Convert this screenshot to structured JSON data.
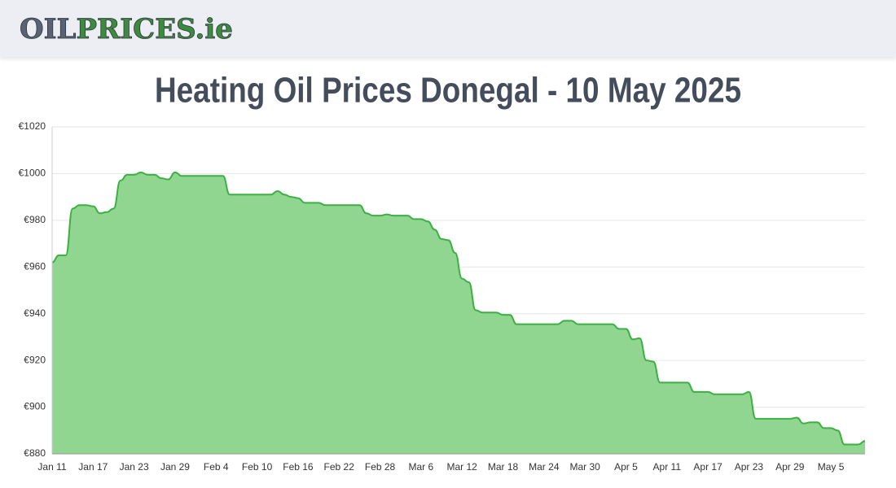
{
  "header": {
    "logo": {
      "left": "OIL",
      "right": "PRICES.ie"
    }
  },
  "chart_data": {
    "type": "area",
    "title": "Heating Oil Prices Donegal - 10 May 2025",
    "color": "#3cb043",
    "fill": "#90d590",
    "grid": true,
    "ylim": [
      880,
      1020
    ],
    "yticks": [
      {
        "value": 880,
        "label": "€880"
      },
      {
        "value": 900,
        "label": "€900"
      },
      {
        "value": 920,
        "label": "€920"
      },
      {
        "value": 940,
        "label": "€940"
      },
      {
        "value": 960,
        "label": "€960"
      },
      {
        "value": 980,
        "label": "€980"
      },
      {
        "value": 1000,
        "label": "€1000"
      },
      {
        "value": 1020,
        "label": "€1020"
      }
    ],
    "categories": [
      "Jan 11",
      null,
      null,
      null,
      null,
      null,
      "Jan 17",
      null,
      null,
      null,
      null,
      null,
      "Jan 23",
      null,
      null,
      null,
      null,
      null,
      "Jan 29",
      null,
      null,
      null,
      null,
      null,
      "Feb 4",
      null,
      null,
      null,
      null,
      null,
      "Feb 10",
      null,
      null,
      null,
      null,
      null,
      "Feb 16",
      null,
      null,
      null,
      null,
      null,
      "Feb 22",
      null,
      null,
      null,
      null,
      null,
      "Feb 28",
      null,
      null,
      null,
      null,
      null,
      "Mar 6",
      null,
      null,
      null,
      null,
      null,
      "Mar 12",
      null,
      null,
      null,
      null,
      null,
      "Mar 18",
      null,
      null,
      null,
      null,
      null,
      "Mar 24",
      null,
      null,
      null,
      null,
      null,
      "Mar 30",
      null,
      null,
      null,
      null,
      null,
      "Apr 5",
      null,
      null,
      null,
      null,
      null,
      "Apr 11",
      null,
      null,
      null,
      null,
      null,
      "Apr 17",
      null,
      null,
      null,
      null,
      null,
      "Apr 23",
      null,
      null,
      null,
      null,
      null,
      "Apr 29",
      null,
      null,
      null,
      null,
      null,
      "May 5",
      null,
      null,
      null,
      null,
      null
    ],
    "values": [
      962,
      965,
      965,
      985,
      986.5,
      986.5,
      986,
      983,
      983.5,
      985,
      997,
      999.5,
      999.5,
      1000.5,
      999.5,
      999.5,
      998,
      997.5,
      1000.5,
      999,
      999,
      999,
      999,
      999,
      999,
      999,
      991,
      991,
      991,
      991,
      991,
      991,
      991,
      992.5,
      991,
      990,
      989.5,
      987.5,
      987.5,
      987.5,
      986.5,
      986.5,
      986.5,
      986.5,
      986.5,
      986.5,
      983,
      982,
      982,
      982.5,
      982,
      982,
      982,
      980.5,
      980.5,
      979.5,
      976,
      972,
      971.5,
      966,
      955,
      953.5,
      941.5,
      940.5,
      940.5,
      940.5,
      939.5,
      939.5,
      935.5,
      935.5,
      935.5,
      935.5,
      935.5,
      935.5,
      935.5,
      937,
      937,
      935.5,
      935.5,
      935.5,
      935.5,
      935.5,
      935.5,
      933.5,
      933.5,
      929,
      929.5,
      920,
      919.5,
      910.5,
      910.5,
      910.5,
      910.5,
      910.5,
      906.5,
      906.5,
      906.5,
      905.5,
      905.5,
      905.5,
      905.5,
      905.5,
      906.5,
      895,
      895,
      895,
      895,
      895,
      895,
      895.5,
      893,
      893.5,
      893.5,
      891,
      891,
      890,
      884,
      884,
      884,
      885.5
    ]
  }
}
